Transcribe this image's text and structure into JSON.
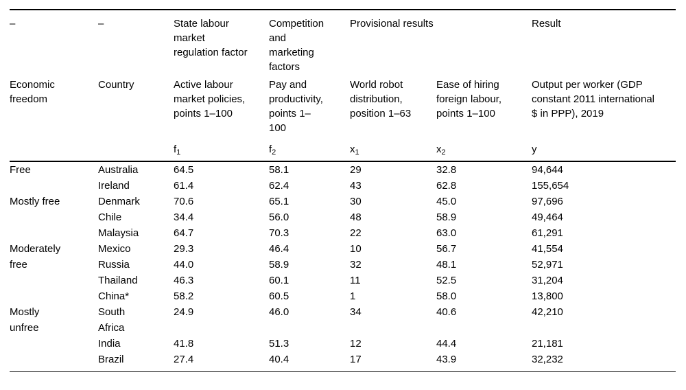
{
  "page": {
    "background": "#ffffff",
    "text_color": "#000000",
    "rule_color": "#000000"
  },
  "table": {
    "header_row1": {
      "economic_freedom_dash": "–",
      "country_dash": "–",
      "state_labour_group": "State labour\nmarket\nregulation factor",
      "competition_group": "Competition\nand\nmarketing\nfactors",
      "provisional_group": "Provisional results",
      "result_group": "Result"
    },
    "header_row2": {
      "economic_freedom": "Economic\nfreedom",
      "country": "Country",
      "active_labour": "Active labour\nmarket policies,\npoints 1–100",
      "pay_productivity": "Pay and\nproductivity,\npoints 1–\n100",
      "world_robot": "World robot\ndistribution,\nposition 1–63",
      "ease_hiring": "Ease of hiring\nforeign labour,\npoints 1–100",
      "output_per_worker": "Output per worker (GDP\nconstant 2011 international\n$ in PPP), 2019"
    },
    "vars": [
      {
        "base": "f",
        "sub": "1"
      },
      {
        "base": "f",
        "sub": "2"
      },
      {
        "base": "x",
        "sub": "1"
      },
      {
        "base": "x",
        "sub": "2"
      },
      {
        "base": "y",
        "sub": ""
      }
    ],
    "rows": [
      {
        "group": "Free",
        "group_span": 2,
        "country": "Australia",
        "f1": "64.5",
        "f2": "58.1",
        "x1": "29",
        "x2": "32.8",
        "y": "94,644"
      },
      {
        "country": "Ireland",
        "f1": "61.4",
        "f2": "62.4",
        "x1": "43",
        "x2": "62.8",
        "y": "155,654"
      },
      {
        "group": "Mostly free",
        "group_span": 3,
        "country": "Denmark",
        "f1": "70.6",
        "f2": "65.1",
        "x1": "30",
        "x2": "45.0",
        "y": "97,696"
      },
      {
        "country": "Chile",
        "f1": "34.4",
        "f2": "56.0",
        "x1": "48",
        "x2": "58.9",
        "y": "49,464"
      },
      {
        "country": "Malaysia",
        "f1": "64.7",
        "f2": "70.3",
        "x1": "22",
        "x2": "63.0",
        "y": "61,291"
      },
      {
        "group": "Moderately\nfree",
        "group_span": 4,
        "country": "Mexico",
        "f1": "29.3",
        "f2": "46.4",
        "x1": "10",
        "x2": "56.7",
        "y": "41,554"
      },
      {
        "country": "Russia",
        "f1": "44.0",
        "f2": "58.9",
        "x1": "32",
        "x2": "48.1",
        "y": "52,971"
      },
      {
        "country": "Thailand",
        "f1": "46.3",
        "f2": "60.1",
        "x1": "11",
        "x2": "52.5",
        "y": "31,204"
      },
      {
        "country": "China*",
        "f1": "58.2",
        "f2": "60.5",
        "x1": "1",
        "x2": "58.0",
        "y": "13,800"
      },
      {
        "group": "Mostly\nunfree",
        "group_span": 3,
        "country": "South\nAfrica",
        "f1": "24.9",
        "f2": "46.0",
        "x1": "34",
        "x2": "40.6",
        "y": "42,210"
      },
      {
        "country": "India",
        "f1": "41.8",
        "f2": "51.3",
        "x1": "12",
        "x2": "44.4",
        "y": "21,181"
      },
      {
        "country": "Brazil",
        "f1": "27.4",
        "f2": "40.4",
        "x1": "17",
        "x2": "43.9",
        "y": "32,232"
      }
    ]
  }
}
